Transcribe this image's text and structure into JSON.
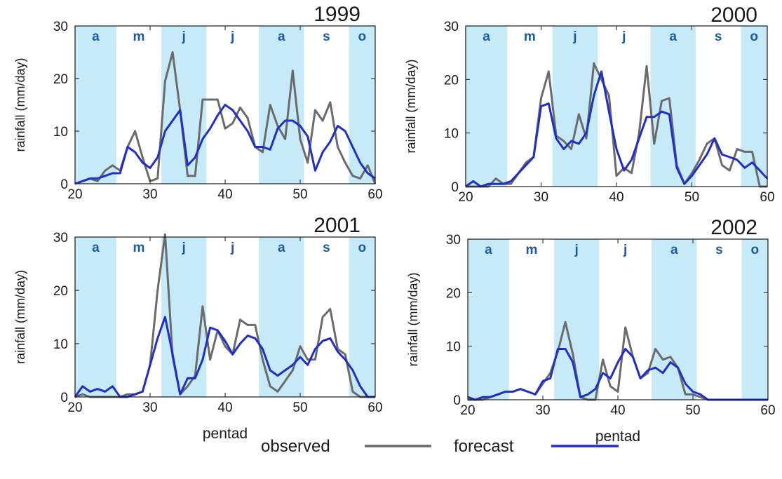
{
  "colors": {
    "band": "#c6eaf8",
    "observed": "#6b6b6b",
    "forecast": "#1f2fc7",
    "month_label": "#1a5aa8",
    "axis": "#1a1a1a"
  },
  "legend": {
    "observed_label": "observed",
    "forecast_label": "forecast"
  },
  "chart_data": [
    {
      "type": "line",
      "title": "1999",
      "ylabel": "rainfall (mm/day)",
      "xlabel": "",
      "xlim": [
        20,
        60
      ],
      "ylim": [
        0,
        30
      ],
      "xticks": [
        20,
        30,
        40,
        50,
        60
      ],
      "yticks": [
        0,
        10,
        20,
        30
      ],
      "month_bands": [
        {
          "label": "a",
          "start": 20,
          "end": 25.5,
          "shaded": true
        },
        {
          "label": "m",
          "start": 25.5,
          "end": 31.5,
          "shaded": false
        },
        {
          "label": "j",
          "start": 31.5,
          "end": 37.5,
          "shaded": true
        },
        {
          "label": "j",
          "start": 37.5,
          "end": 44.5,
          "shaded": false
        },
        {
          "label": "a",
          "start": 44.5,
          "end": 50.5,
          "shaded": true
        },
        {
          "label": "s",
          "start": 50.5,
          "end": 56.5,
          "shaded": false
        },
        {
          "label": "o",
          "start": 56.5,
          "end": 60,
          "shaded": true
        }
      ],
      "series": [
        {
          "name": "observed",
          "x": [
            20,
            21,
            22,
            23,
            24,
            25,
            26,
            27,
            28,
            29,
            30,
            31,
            32,
            33,
            34,
            35,
            36,
            37,
            38,
            39,
            40,
            41,
            42,
            43,
            44,
            45,
            46,
            47,
            48,
            49,
            50,
            51,
            52,
            53,
            54,
            55,
            56,
            57,
            58,
            59,
            60
          ],
          "values": [
            0,
            0.5,
            1,
            0.5,
            2.5,
            3.5,
            2.5,
            7,
            10,
            5,
            0.5,
            1,
            19.5,
            25,
            14,
            1.5,
            1.5,
            16,
            16,
            16,
            10.5,
            11.5,
            14.5,
            12.5,
            7,
            6,
            15,
            11,
            8.5,
            21.5,
            8.5,
            4,
            14,
            12,
            15.5,
            7,
            4,
            1.5,
            1,
            3.5,
            0
          ]
        },
        {
          "name": "forecast",
          "x": [
            20,
            21,
            22,
            23,
            24,
            25,
            26,
            27,
            28,
            29,
            30,
            31,
            32,
            33,
            34,
            35,
            36,
            37,
            38,
            39,
            40,
            41,
            42,
            43,
            44,
            45,
            46,
            47,
            48,
            49,
            50,
            51,
            52,
            53,
            54,
            55,
            56,
            57,
            58,
            59,
            60
          ],
          "values": [
            0,
            0.5,
            1,
            1,
            1.5,
            2,
            2,
            7,
            6,
            4,
            3,
            5,
            10,
            12,
            14,
            3.5,
            5,
            8.5,
            10.5,
            13,
            15,
            14,
            12,
            10,
            7,
            7,
            6.5,
            10.5,
            12,
            12,
            11,
            9,
            2.5,
            6,
            8,
            11,
            10,
            7,
            4,
            2,
            1
          ]
        }
      ]
    },
    {
      "type": "line",
      "title": "2000",
      "ylabel": "rainfall (mm/day)",
      "xlabel": "",
      "xlim": [
        20,
        60
      ],
      "ylim": [
        0,
        30
      ],
      "xticks": [
        20,
        30,
        40,
        50,
        60
      ],
      "yticks": [
        0,
        10,
        20,
        30
      ],
      "month_bands": [
        {
          "label": "a",
          "start": 20,
          "end": 25.5,
          "shaded": true
        },
        {
          "label": "m",
          "start": 25.5,
          "end": 31.5,
          "shaded": false
        },
        {
          "label": "j",
          "start": 31.5,
          "end": 37.5,
          "shaded": true
        },
        {
          "label": "j",
          "start": 37.5,
          "end": 44.5,
          "shaded": false
        },
        {
          "label": "a",
          "start": 44.5,
          "end": 50.5,
          "shaded": true
        },
        {
          "label": "s",
          "start": 50.5,
          "end": 56.5,
          "shaded": false
        },
        {
          "label": "o",
          "start": 56.5,
          "end": 60,
          "shaded": true
        }
      ],
      "series": [
        {
          "name": "observed",
          "x": [
            20,
            21,
            22,
            23,
            24,
            25,
            26,
            27,
            28,
            29,
            30,
            31,
            32,
            33,
            34,
            35,
            36,
            37,
            38,
            39,
            40,
            41,
            42,
            43,
            44,
            45,
            46,
            47,
            48,
            49,
            50,
            51,
            52,
            53,
            54,
            55,
            56,
            57,
            58,
            59,
            60
          ],
          "values": [
            0,
            0,
            0,
            0,
            1.5,
            0.5,
            0.5,
            2.5,
            4.5,
            5.5,
            16.5,
            21.5,
            9.5,
            8.5,
            7,
            13.5,
            9,
            23,
            20,
            17,
            2,
            3.5,
            2.5,
            10,
            22.5,
            8,
            16,
            16.5,
            4,
            0.5,
            2.5,
            5,
            8,
            9,
            4,
            3,
            7,
            6.5,
            6.5,
            0,
            0
          ]
        },
        {
          "name": "forecast",
          "x": [
            20,
            21,
            22,
            23,
            24,
            25,
            26,
            27,
            28,
            29,
            30,
            31,
            32,
            33,
            34,
            35,
            36,
            37,
            38,
            39,
            40,
            41,
            42,
            43,
            44,
            45,
            46,
            47,
            48,
            49,
            50,
            51,
            52,
            53,
            54,
            55,
            56,
            57,
            58,
            59,
            60
          ],
          "values": [
            0,
            1,
            0,
            0.5,
            0.5,
            0.5,
            1,
            2.5,
            4,
            5.5,
            15,
            15.5,
            9,
            7,
            8.5,
            8,
            10,
            17,
            21.5,
            14,
            7,
            3,
            5,
            9,
            13,
            13,
            14,
            13.5,
            3.5,
            0.5,
            2,
            4,
            6,
            9,
            6,
            5.5,
            5,
            3.5,
            4.5,
            3,
            1.5
          ]
        }
      ]
    },
    {
      "type": "line",
      "title": "2001",
      "ylabel": "rainfall (mm/day)",
      "xlabel": "pentad",
      "xlim": [
        20,
        60
      ],
      "ylim": [
        0,
        30
      ],
      "xticks": [
        20,
        30,
        40,
        50,
        60
      ],
      "yticks": [
        0,
        10,
        20,
        30
      ],
      "month_bands": [
        {
          "label": "a",
          "start": 20,
          "end": 25.5,
          "shaded": true
        },
        {
          "label": "m",
          "start": 25.5,
          "end": 31.5,
          "shaded": false
        },
        {
          "label": "j",
          "start": 31.5,
          "end": 37.5,
          "shaded": true
        },
        {
          "label": "j",
          "start": 37.5,
          "end": 44.5,
          "shaded": false
        },
        {
          "label": "a",
          "start": 44.5,
          "end": 50.5,
          "shaded": true
        },
        {
          "label": "s",
          "start": 50.5,
          "end": 56.5,
          "shaded": false
        },
        {
          "label": "o",
          "start": 56.5,
          "end": 60,
          "shaded": true
        }
      ],
      "series": [
        {
          "name": "observed",
          "x": [
            20,
            21,
            22,
            23,
            24,
            25,
            26,
            27,
            28,
            29,
            30,
            31,
            32,
            33,
            34,
            35,
            36,
            37,
            38,
            39,
            40,
            41,
            42,
            43,
            44,
            45,
            46,
            47,
            48,
            49,
            50,
            51,
            52,
            53,
            54,
            55,
            56,
            57,
            58,
            59,
            60
          ],
          "values": [
            0,
            0.5,
            0,
            0,
            0,
            0,
            0,
            0.5,
            0.5,
            1,
            6,
            20,
            30.5,
            7.5,
            0.5,
            2,
            4,
            17,
            7,
            12.5,
            9.5,
            8,
            14.5,
            13.5,
            13.5,
            7,
            2,
            1,
            3,
            5,
            9.5,
            7,
            7,
            15,
            16.5,
            9,
            8,
            1,
            0,
            0,
            0
          ]
        },
        {
          "name": "forecast",
          "x": [
            20,
            21,
            22,
            23,
            24,
            25,
            26,
            27,
            28,
            29,
            30,
            31,
            32,
            33,
            34,
            35,
            36,
            37,
            38,
            39,
            40,
            41,
            42,
            43,
            44,
            45,
            46,
            47,
            48,
            49,
            50,
            51,
            52,
            53,
            54,
            55,
            56,
            57,
            58,
            59,
            60
          ],
          "values": [
            0,
            2,
            1,
            1.5,
            1,
            2,
            0,
            0,
            0.5,
            1,
            6,
            11,
            15,
            8,
            0.5,
            3.5,
            3.5,
            7,
            13,
            12.5,
            10.5,
            8,
            10,
            11.5,
            11,
            9,
            5,
            4,
            5,
            6,
            7.5,
            6,
            9,
            10.5,
            11,
            8.5,
            7,
            5,
            2,
            0,
            0
          ]
        }
      ]
    },
    {
      "type": "line",
      "title": "2002",
      "ylabel": "rainfall (mm/day)",
      "xlabel": "pentad",
      "xlim": [
        20,
        60
      ],
      "ylim": [
        0,
        30
      ],
      "xticks": [
        20,
        30,
        40,
        50,
        60
      ],
      "yticks": [
        0,
        10,
        20,
        30
      ],
      "month_bands": [
        {
          "label": "a",
          "start": 20,
          "end": 25.5,
          "shaded": true
        },
        {
          "label": "m",
          "start": 25.5,
          "end": 31.5,
          "shaded": false
        },
        {
          "label": "j",
          "start": 31.5,
          "end": 37.5,
          "shaded": true
        },
        {
          "label": "j",
          "start": 37.5,
          "end": 44.5,
          "shaded": false
        },
        {
          "label": "a",
          "start": 44.5,
          "end": 50.5,
          "shaded": true
        },
        {
          "label": "s",
          "start": 50.5,
          "end": 56.5,
          "shaded": false
        },
        {
          "label": "o",
          "start": 56.5,
          "end": 60,
          "shaded": true
        }
      ],
      "series": [
        {
          "name": "observed",
          "x": [
            20,
            21,
            22,
            23,
            24,
            25,
            26,
            27,
            28,
            29,
            30,
            31,
            32,
            33,
            34,
            35,
            36,
            37,
            38,
            39,
            40,
            41,
            42,
            43,
            44,
            45,
            46,
            47,
            48,
            49,
            50,
            51,
            52,
            53,
            54,
            55,
            56,
            57,
            58,
            59,
            60
          ],
          "values": [
            0,
            0,
            0,
            0.5,
            1,
            1.5,
            1.5,
            2,
            1.5,
            1,
            3,
            5,
            9,
            14.5,
            8.5,
            0.5,
            0,
            0,
            7.5,
            2.5,
            1.5,
            13.5,
            8,
            4,
            5,
            9.5,
            7.5,
            8,
            6,
            1,
            1,
            0.5,
            0,
            0,
            0,
            0,
            0,
            0,
            0,
            0,
            0
          ]
        },
        {
          "name": "forecast",
          "x": [
            20,
            21,
            22,
            23,
            24,
            25,
            26,
            27,
            28,
            29,
            30,
            31,
            32,
            33,
            34,
            35,
            36,
            37,
            38,
            39,
            40,
            41,
            42,
            43,
            44,
            45,
            46,
            47,
            48,
            49,
            50,
            51,
            52,
            53,
            54,
            55,
            56,
            57,
            58,
            59,
            60
          ],
          "values": [
            0.5,
            0,
            0.5,
            0.5,
            1,
            1.5,
            1.5,
            2,
            1.5,
            1,
            3.5,
            4,
            9.5,
            9.5,
            7,
            0.5,
            1,
            2,
            5,
            4,
            7,
            9.5,
            8,
            4,
            5.5,
            6,
            5,
            7,
            6,
            3,
            1.5,
            1,
            0,
            0,
            0,
            0,
            0,
            0,
            0,
            0,
            0
          ]
        }
      ]
    }
  ]
}
